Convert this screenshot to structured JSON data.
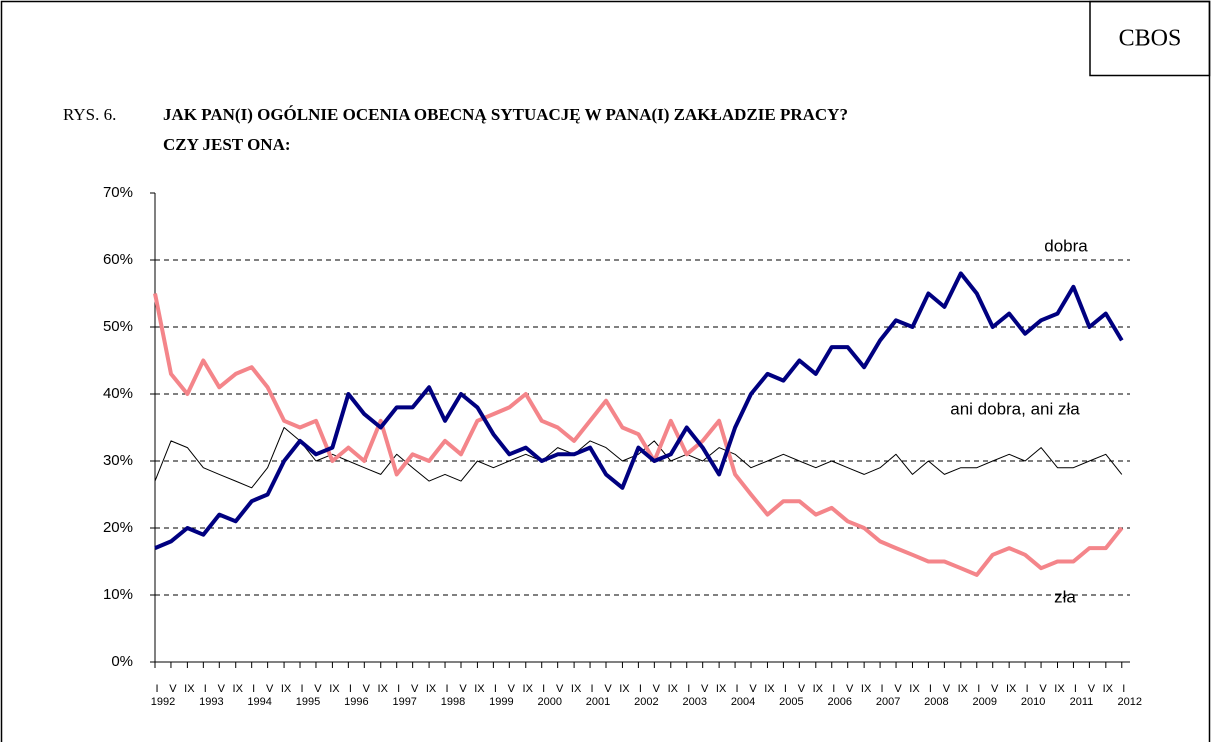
{
  "corner": "CBOS",
  "chart_data": {
    "type": "line",
    "label": "RYS. 6.",
    "title": "JAK PAN(I) OGÓLNIE OCENIA OBECNĄ SYTUACJĘ W PANA(I) ZAKŁADZIE PRACY?",
    "subtitle": "CZY JEST ONA:",
    "x": [
      1992,
      1992.33,
      1992.67,
      1993,
      1993.33,
      1993.67,
      1994,
      1994.33,
      1994.67,
      1995,
      1995.33,
      1995.67,
      1996,
      1996.33,
      1996.67,
      1997,
      1997.33,
      1997.67,
      1998,
      1998.33,
      1998.67,
      1999,
      1999.33,
      1999.67,
      2000,
      2000.33,
      2000.67,
      2001,
      2001.33,
      2001.67,
      2002,
      2002.33,
      2002.67,
      2003,
      2003.33,
      2003.67,
      2004,
      2004.33,
      2004.67,
      2005,
      2005.33,
      2005.67,
      2006,
      2006.33,
      2006.67,
      2007,
      2007.33,
      2007.67,
      2008,
      2008.33,
      2008.67,
      2009,
      2009.33,
      2009.67,
      2010,
      2010.33,
      2010.67,
      2011,
      2011.33,
      2011.67,
      2012
    ],
    "series": [
      {
        "name": "dobra",
        "color": "#000080",
        "width": 4,
        "values": [
          17,
          18,
          20,
          19,
          22,
          21,
          24,
          25,
          30,
          33,
          31,
          32,
          40,
          37,
          35,
          38,
          38,
          41,
          36,
          40,
          38,
          34,
          31,
          32,
          30,
          31,
          31,
          32,
          28,
          26,
          32,
          30,
          31,
          35,
          32,
          28,
          35,
          40,
          43,
          42,
          45,
          43,
          47,
          47,
          44,
          48,
          51,
          50,
          55,
          53,
          58,
          55,
          50,
          52,
          49,
          51,
          52,
          56,
          50,
          52,
          48
        ]
      },
      {
        "name": "ani dobra, ani zła",
        "color": "#000000",
        "width": 1,
        "values": [
          27,
          33,
          32,
          29,
          28,
          27,
          26,
          29,
          35,
          33,
          30,
          31,
          30,
          29,
          28,
          31,
          29,
          27,
          28,
          27,
          30,
          29,
          30,
          31,
          30,
          32,
          31,
          33,
          32,
          30,
          31,
          33,
          30,
          31,
          30,
          32,
          31,
          29,
          30,
          31,
          30,
          29,
          30,
          29,
          28,
          29,
          31,
          28,
          30,
          28,
          29,
          29,
          30,
          31,
          30,
          32,
          29,
          29,
          30,
          31,
          28
        ]
      },
      {
        "name": "zła",
        "color": "#f4858a",
        "width": 4,
        "values": [
          55,
          43,
          40,
          45,
          41,
          43,
          44,
          41,
          36,
          35,
          36,
          30,
          32,
          30,
          36,
          28,
          31,
          30,
          33,
          31,
          36,
          37,
          38,
          40,
          36,
          35,
          33,
          36,
          39,
          35,
          34,
          30,
          36,
          31,
          33,
          36,
          28,
          25,
          22,
          24,
          24,
          22,
          23,
          21,
          20,
          18,
          17,
          16,
          15,
          15,
          14,
          13,
          16,
          17,
          16,
          14,
          15,
          15,
          17,
          17,
          20
        ]
      }
    ],
    "xlim": [
      1992,
      2012.17
    ],
    "xticks": [
      {
        "value": 1992,
        "label": "I"
      },
      {
        "value": 1992.33,
        "label": "V"
      },
      {
        "value": 1992.67,
        "label": "IX"
      },
      {
        "value": 1993,
        "label": "I"
      },
      {
        "value": 1993.33,
        "label": "V"
      },
      {
        "value": 1993.67,
        "label": "IX"
      },
      {
        "value": 1994,
        "label": "I"
      },
      {
        "value": 1994.33,
        "label": "V"
      },
      {
        "value": 1994.67,
        "label": "IX"
      },
      {
        "value": 1995,
        "label": "I"
      },
      {
        "value": 1995.33,
        "label": "V"
      },
      {
        "value": 1995.67,
        "label": "IX"
      },
      {
        "value": 1996,
        "label": "I"
      },
      {
        "value": 1996.33,
        "label": "V"
      },
      {
        "value": 1996.67,
        "label": "IX"
      },
      {
        "value": 1997,
        "label": "I"
      },
      {
        "value": 1997.33,
        "label": "V"
      },
      {
        "value": 1997.67,
        "label": "IX"
      },
      {
        "value": 1998,
        "label": "I"
      },
      {
        "value": 1998.33,
        "label": "V"
      },
      {
        "value": 1998.67,
        "label": "IX"
      },
      {
        "value": 1999,
        "label": "I"
      },
      {
        "value": 1999.33,
        "label": "V"
      },
      {
        "value": 1999.67,
        "label": "IX"
      },
      {
        "value": 2000,
        "label": "I"
      },
      {
        "value": 2000.33,
        "label": "V"
      },
      {
        "value": 2000.67,
        "label": "IX"
      },
      {
        "value": 2001,
        "label": "I"
      },
      {
        "value": 2001.33,
        "label": "V"
      },
      {
        "value": 2001.67,
        "label": "IX"
      },
      {
        "value": 2002,
        "label": "I"
      },
      {
        "value": 2002.33,
        "label": "V"
      },
      {
        "value": 2002.67,
        "label": "IX"
      },
      {
        "value": 2003,
        "label": "I"
      },
      {
        "value": 2003.33,
        "label": "V"
      },
      {
        "value": 2003.67,
        "label": "IX"
      },
      {
        "value": 2004,
        "label": "I"
      },
      {
        "value": 2004.33,
        "label": "V"
      },
      {
        "value": 2004.67,
        "label": "IX"
      },
      {
        "value": 2005,
        "label": "I"
      },
      {
        "value": 2005.33,
        "label": "V"
      },
      {
        "value": 2005.67,
        "label": "IX"
      },
      {
        "value": 2006,
        "label": "I"
      },
      {
        "value": 2006.33,
        "label": "V"
      },
      {
        "value": 2006.67,
        "label": "IX"
      },
      {
        "value": 2007,
        "label": "I"
      },
      {
        "value": 2007.33,
        "label": "V"
      },
      {
        "value": 2007.67,
        "label": "IX"
      },
      {
        "value": 2008,
        "label": "I"
      },
      {
        "value": 2008.33,
        "label": "V"
      },
      {
        "value": 2008.67,
        "label": "IX"
      },
      {
        "value": 2009,
        "label": "I"
      },
      {
        "value": 2009.33,
        "label": "V"
      },
      {
        "value": 2009.67,
        "label": "IX"
      },
      {
        "value": 2010,
        "label": "I"
      },
      {
        "value": 2010.33,
        "label": "V"
      },
      {
        "value": 2010.67,
        "label": "IX"
      },
      {
        "value": 2011,
        "label": "I"
      },
      {
        "value": 2011.33,
        "label": "V"
      },
      {
        "value": 2011.67,
        "label": "IX"
      },
      {
        "value": 2012,
        "label": "I"
      }
    ],
    "year_labels": [
      1992,
      1993,
      1994,
      1995,
      1996,
      1997,
      1998,
      1999,
      2000,
      2001,
      2002,
      2003,
      2004,
      2005,
      2006,
      2007,
      2008,
      2009,
      2010,
      2011,
      2012
    ],
    "ylim": [
      0,
      70
    ],
    "yticks": [
      {
        "value": 0,
        "label": "0%"
      },
      {
        "value": 10,
        "label": "10%"
      },
      {
        "value": 20,
        "label": "20%"
      },
      {
        "value": 30,
        "label": "30%"
      },
      {
        "value": 40,
        "label": "40%"
      },
      {
        "value": 50,
        "label": "50%"
      },
      {
        "value": 60,
        "label": "60%"
      },
      {
        "value": 70,
        "label": "70%"
      }
    ],
    "grid": true
  }
}
